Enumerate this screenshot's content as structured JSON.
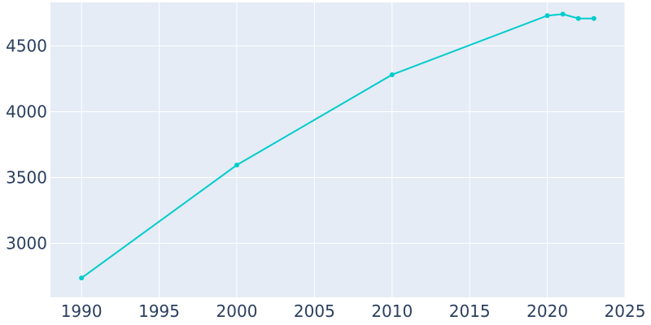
{
  "chart_data": {
    "type": "line",
    "title": "",
    "xlabel": "",
    "ylabel": "",
    "x": [
      1990,
      2000,
      2010,
      2020,
      2021,
      2022,
      2023
    ],
    "series": [
      {
        "values": [
          2737,
          3595,
          4281,
          4730,
          4741,
          4708,
          4708
        ]
      }
    ],
    "xlim": [
      1988,
      2025
    ],
    "ylim": [
      2590,
      4830
    ],
    "x_ticks": [
      1990,
      1995,
      2000,
      2005,
      2010,
      2015,
      2020,
      2025
    ],
    "y_ticks": [
      3000,
      3500,
      4000,
      4500
    ],
    "x_tick_labels": [
      "1990",
      "1995",
      "2000",
      "2005",
      "2010",
      "2015",
      "2020",
      "2025"
    ],
    "y_tick_labels": [
      "3000",
      "3500",
      "4000",
      "4500"
    ],
    "grid": true,
    "colors": {
      "plot_background": "#e5ecf6",
      "gridline": "#ffffff",
      "line": "#00cccc",
      "tick_text": "#2a3f5f"
    }
  }
}
